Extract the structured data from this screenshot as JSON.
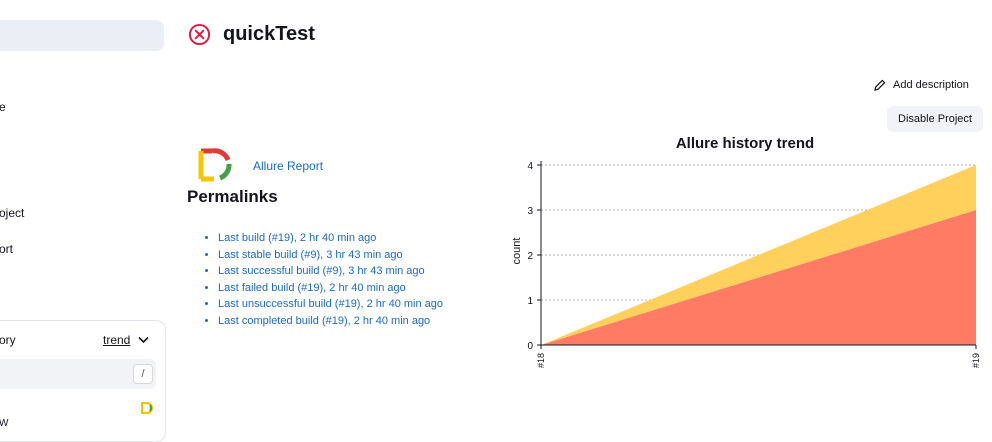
{
  "sidebar": {
    "partial_e": "e",
    "partial_project": "oject",
    "partial_report": "ort",
    "widget_title_partial": "ory",
    "trend_label": "trend",
    "slash_key": "/",
    "partial_row": "W"
  },
  "header": {
    "title": "quickTest",
    "status_icon": "failed-x-circle-icon",
    "status_color": "#e6163f"
  },
  "actions": {
    "add_description": "Add description",
    "disable_project": "Disable Project"
  },
  "allure": {
    "link_label": "Allure Report",
    "logo_colors": [
      "#f7c600",
      "#e53935",
      "#43a047"
    ]
  },
  "permalinks": {
    "title": "Permalinks",
    "items": [
      "Last build (#19), 2 hr 40 min ago",
      "Last stable build (#9), 3 hr 43 min ago",
      "Last successful build (#9), 3 hr 43 min ago",
      "Last failed build (#19), 2 hr 40 min ago",
      "Last unsuccessful build (#19), 2 hr 40 min ago",
      "Last completed build (#19), 2 hr 40 min ago"
    ]
  },
  "chart_data": {
    "type": "area",
    "title": "Allure history trend",
    "xlabel": "",
    "ylabel": "count",
    "categories": [
      "#18",
      "#19"
    ],
    "yticks": [
      0,
      1,
      2,
      3,
      4
    ],
    "ylim": [
      0,
      4
    ],
    "grid": true,
    "stacked": true,
    "series": [
      {
        "values": [
          0,
          3
        ],
        "color": "#ff7b63"
      },
      {
        "values": [
          0,
          1
        ],
        "color": "#ffd15c"
      }
    ]
  }
}
